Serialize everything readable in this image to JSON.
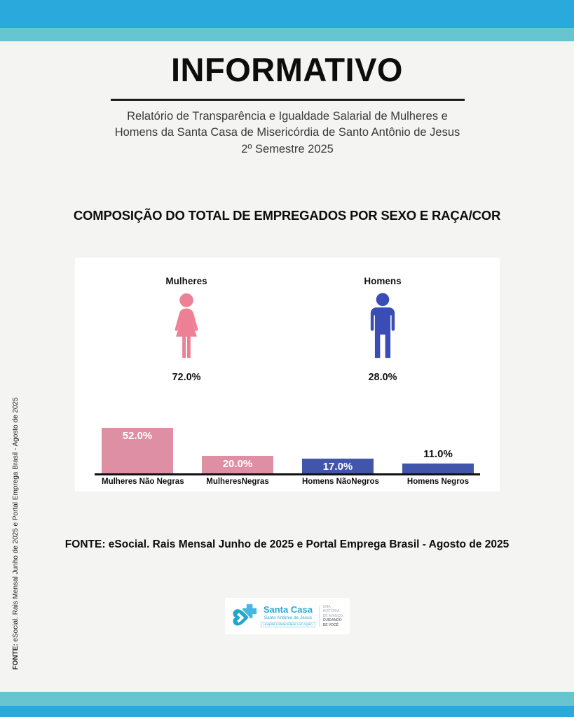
{
  "page": {
    "background": "#F4F4F2",
    "stripe_dark": "#29A9DC",
    "stripe_light": "#67C4D1"
  },
  "header": {
    "title": "INFORMATIVO",
    "subtitle": "Relatório de Transparência e Igualdade Salarial de Mulheres e\nHomens da Santa Casa de Misericórdia de Santo Antônio de Jesus\n2º Semestre 2025"
  },
  "chart_data": {
    "type": "bar",
    "title": "COMPOSIÇÃO DO TOTAL DE EMPREGADOS POR SEXO E RAÇA/COR",
    "pictogram_summary": [
      {
        "label": "Mulheres",
        "value": 72.0,
        "value_label": "72.0%",
        "color": "#EE8096",
        "icon": "woman-icon"
      },
      {
        "label": "Homens",
        "value": 28.0,
        "value_label": "28.0%",
        "color": "#3A4CB5",
        "icon": "man-icon"
      }
    ],
    "categories": [
      "Mulheres Não Negras",
      "MulheresNegras",
      "Homens NãoNegros",
      "Homens Negros"
    ],
    "values": [
      52.0,
      20.0,
      17.0,
      11.0
    ],
    "value_labels": [
      "52.0%",
      "20.0%",
      "17.0%",
      "11.0%"
    ],
    "bar_colors": [
      "#DE8FA3",
      "#DE8FA3",
      "#4155AB",
      "#4155AB"
    ],
    "value_label_positions": [
      "inside",
      "inside",
      "inside",
      "above"
    ],
    "xlabel": "",
    "ylabel": "",
    "ylim": [
      0,
      64
    ],
    "grid": false,
    "legend": false,
    "axis_color": "#111111",
    "card_background": "#FFFFFF"
  },
  "source": {
    "main": "FONTE: eSocial. Rais Mensal Junho de 2025 e Portal Emprega Brasil - Agosto de 2025",
    "side_prefix": "FONTE:",
    "side_text": " eSocial. Rais Mensal Junho de 2025 e Portal Emprega Brasil - Agosto de 2025"
  },
  "logo": {
    "name": "Santa Casa",
    "subname": "Santo Antônio de Jesus",
    "tagline_box": "Hospital e Maternidade Luiz Argolo",
    "slogan_light": "UMA HISTÓRIA\nDE AVANÇO,",
    "slogan_bold": "CUIDANDO\nDE VOCÊ",
    "teal": "#2BA9CE",
    "light_blue": "#45B7E2"
  }
}
